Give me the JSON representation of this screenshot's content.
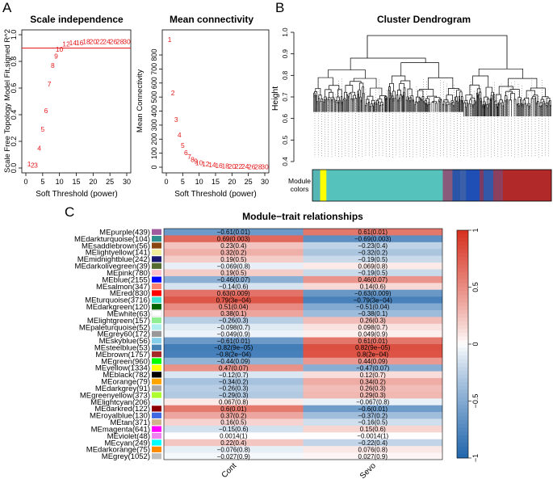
{
  "panel_labels": {
    "a": "A",
    "b": "B",
    "c": "C"
  },
  "colors": {
    "accent_red": "#e41a1c",
    "low": "#2166ac",
    "mid": "#ffffff",
    "high": "#d6301f"
  },
  "chart_data": [
    {
      "type": "scatter",
      "title": "Scale independence",
      "xlabel": "Soft Threshold (power)",
      "ylabel": "Scale Free Topology Model Fit,signed R^2",
      "xlim": [
        0,
        30
      ],
      "ylim": [
        0.0,
        1.0
      ],
      "xticks": [
        "0",
        "5",
        "10",
        "15",
        "20",
        "25",
        "30"
      ],
      "yticks": [
        "0.0",
        "0.2",
        "0.4",
        "0.6",
        "0.8",
        "1.0"
      ],
      "hline": 0.9,
      "points": [
        {
          "x": 1,
          "y": 0.03,
          "label": "1"
        },
        {
          "x": 2,
          "y": 0.02,
          "label": "2"
        },
        {
          "x": 3,
          "y": 0.02,
          "label": "3"
        },
        {
          "x": 4,
          "y": 0.15,
          "label": "4"
        },
        {
          "x": 5,
          "y": 0.29,
          "label": "5"
        },
        {
          "x": 6,
          "y": 0.43,
          "label": "6"
        },
        {
          "x": 7,
          "y": 0.63,
          "label": "7"
        },
        {
          "x": 8,
          "y": 0.77,
          "label": "8"
        },
        {
          "x": 9,
          "y": 0.84,
          "label": "9"
        },
        {
          "x": 10,
          "y": 0.89,
          "label": "10"
        },
        {
          "x": 12,
          "y": 0.93,
          "label": "12"
        },
        {
          "x": 14,
          "y": 0.94,
          "label": "14"
        },
        {
          "x": 16,
          "y": 0.94,
          "label": "16"
        },
        {
          "x": 18,
          "y": 0.95,
          "label": "18"
        },
        {
          "x": 20,
          "y": 0.95,
          "label": "20"
        },
        {
          "x": 22,
          "y": 0.95,
          "label": "22"
        },
        {
          "x": 24,
          "y": 0.95,
          "label": "24"
        },
        {
          "x": 26,
          "y": 0.95,
          "label": "26"
        },
        {
          "x": 28,
          "y": 0.95,
          "label": "28"
        },
        {
          "x": 30,
          "y": 0.95,
          "label": "30"
        }
      ]
    },
    {
      "type": "scatter",
      "title": "Mean connectivity",
      "xlabel": "Soft Threshold (power)",
      "ylabel": "Mean Connectivity",
      "xlim": [
        0,
        30
      ],
      "ylim": [
        0,
        950
      ],
      "xticks": [
        "0",
        "5",
        "10",
        "15",
        "20",
        "25",
        "30"
      ],
      "yticks": [
        "0",
        "100",
        "200",
        "300",
        "400",
        "500",
        "600",
        "700",
        "800"
      ],
      "points": [
        {
          "x": 1,
          "y": 910,
          "label": "1"
        },
        {
          "x": 2,
          "y": 530,
          "label": "2"
        },
        {
          "x": 3,
          "y": 340,
          "label": "3"
        },
        {
          "x": 4,
          "y": 230,
          "label": "4"
        },
        {
          "x": 5,
          "y": 155,
          "label": "5"
        },
        {
          "x": 6,
          "y": 105,
          "label": "6"
        },
        {
          "x": 7,
          "y": 75,
          "label": "7"
        },
        {
          "x": 8,
          "y": 55,
          "label": "8"
        },
        {
          "x": 9,
          "y": 42,
          "label": "9"
        },
        {
          "x": 10,
          "y": 32,
          "label": "10"
        },
        {
          "x": 12,
          "y": 22,
          "label": "12"
        },
        {
          "x": 14,
          "y": 16,
          "label": "14"
        },
        {
          "x": 16,
          "y": 12,
          "label": "16"
        },
        {
          "x": 18,
          "y": 9,
          "label": "18"
        },
        {
          "x": 20,
          "y": 7,
          "label": "20"
        },
        {
          "x": 22,
          "y": 6,
          "label": "22"
        },
        {
          "x": 24,
          "y": 5,
          "label": "24"
        },
        {
          "x": 26,
          "y": 4,
          "label": "26"
        },
        {
          "x": 28,
          "y": 3,
          "label": "28"
        },
        {
          "x": 30,
          "y": 3,
          "label": "30"
        }
      ]
    },
    {
      "type": "dendrogram",
      "title": "Cluster Dendrogram",
      "ylabel": "Height",
      "ylim": [
        0.4,
        1.0
      ],
      "yticks": [
        "0.4",
        "0.5",
        "0.6",
        "0.7",
        "0.8",
        "0.9",
        "1.0"
      ],
      "colorbar_label": "Module colors",
      "colorbar_segments": [
        {
          "color": "#56b6b6",
          "weight": 2
        },
        {
          "color": "#ffff00",
          "weight": 1.6
        },
        {
          "color": "#56c2bc",
          "weight": 30
        },
        {
          "color": "#8a5a7a",
          "weight": 2.5
        },
        {
          "color": "#2a55a8",
          "weight": 2
        },
        {
          "color": "#3b5fa8",
          "weight": 1.5
        },
        {
          "color": "#1f4fb5",
          "weight": 3.5
        },
        {
          "color": "#7b3b62",
          "weight": 1
        },
        {
          "color": "#3358a8",
          "weight": 2.5
        },
        {
          "color": "#8b4060",
          "weight": 2.5
        },
        {
          "color": "#b2292a",
          "weight": 12.5
        }
      ]
    },
    {
      "type": "heatmap",
      "title": "Module−trait relationships",
      "columns": [
        "Cont",
        "Sevo"
      ],
      "zlim": [
        -1,
        1
      ],
      "legend_ticks": [
        "1",
        "0.5",
        "0",
        "−0.5",
        "−1"
      ],
      "rows": [
        {
          "label": "MEpurple(439)",
          "color": "#a05b9f",
          "values": [
            -0.61,
            0.61
          ],
          "text": [
            "−0.61(0.01)",
            "0.61(0.01)"
          ]
        },
        {
          "label": "MEdarkturquoise(104)",
          "color": "#2f8e8e",
          "values": [
            0.69,
            -0.69
          ],
          "text": [
            "0.69(0.003)",
            "−0.69(0.003)"
          ]
        },
        {
          "label": "MEsaddlebrown(56)",
          "color": "#8b4513",
          "values": [
            0.23,
            -0.23
          ],
          "text": [
            "0.23(0.4)",
            "−0.23(0.4)"
          ]
        },
        {
          "label": "MElightyellow(141)",
          "color": "#f0ee9a",
          "values": [
            0.32,
            -0.32
          ],
          "text": [
            "0.32(0.2)",
            "−0.32(0.2)"
          ]
        },
        {
          "label": "MEmidnightblue(242)",
          "color": "#191970",
          "values": [
            0.19,
            -0.19
          ],
          "text": [
            "0.19(0.5)",
            "−0.19(0.5)"
          ]
        },
        {
          "label": "MEdarkolivegreen(39)",
          "color": "#556b2f",
          "values": [
            -0.069,
            0.069
          ],
          "text": [
            "−0.069(0.8)",
            "0.069(0.8)"
          ]
        },
        {
          "label": "MEpink(780)",
          "color": "#ffc0cb",
          "values": [
            0.19,
            -0.19
          ],
          "text": [
            "0.19(0.5)",
            "−0.19(0.5)"
          ]
        },
        {
          "label": "MEblue(2155)",
          "color": "#0000ff",
          "values": [
            -0.46,
            0.46
          ],
          "text": [
            "−0.46(0.07)",
            "0.46(0.07)"
          ]
        },
        {
          "label": "MEsalmon(347)",
          "color": "#fa8072",
          "values": [
            -0.14,
            0.14
          ],
          "text": [
            "−0.14(0.6)",
            "0.14(0.6)"
          ]
        },
        {
          "label": "MEred(830)",
          "color": "#ff0000",
          "values": [
            0.63,
            -0.63
          ],
          "text": [
            "0.63(0.009)",
            "−0.63(0.009)"
          ]
        },
        {
          "label": "MEturquoise(3716)",
          "color": "#40e0d0",
          "values": [
            0.79,
            -0.79
          ],
          "text": [
            "0.79(3e−04)",
            "−0.79(3e−04)"
          ]
        },
        {
          "label": "MEdarkgreen(120)",
          "color": "#006400",
          "values": [
            0.51,
            -0.51
          ],
          "text": [
            "0.51(0.04)",
            "−0.51(0.04)"
          ]
        },
        {
          "label": "MEwhite(63)",
          "color": "#ffffff",
          "values": [
            0.38,
            -0.38
          ],
          "text": [
            "0.38(0.1)",
            "−0.38(0.1)"
          ]
        },
        {
          "label": "MElightgreen(157)",
          "color": "#90ee90",
          "values": [
            -0.26,
            0.26
          ],
          "text": [
            "−0.26(0.3)",
            "0.26(0.3)"
          ]
        },
        {
          "label": "MEpaleturquoise(52)",
          "color": "#afeeee",
          "values": [
            -0.098,
            0.098
          ],
          "text": [
            "−0.098(0.7)",
            "0.098(0.7)"
          ]
        },
        {
          "label": "MEgrey60(172)",
          "color": "#999999",
          "values": [
            -0.049,
            0.049
          ],
          "text": [
            "−0.049(0.9)",
            "0.049(0.9)"
          ]
        },
        {
          "label": "MEskyblue(56)",
          "color": "#87ceeb",
          "values": [
            -0.61,
            0.61
          ],
          "text": [
            "−0.61(0.01)",
            "0.61(0.01)"
          ]
        },
        {
          "label": "MEsteelblue(53)",
          "color": "#4682b4",
          "values": [
            -0.82,
            0.82
          ],
          "text": [
            "−0.82(9e−05)",
            "0.82(9e−05)"
          ]
        },
        {
          "label": "MEbrown(1757)",
          "color": "#a52a2a",
          "values": [
            -0.8,
            0.8
          ],
          "text": [
            "−0.8(2e−04)",
            "0.8(2e−04)"
          ]
        },
        {
          "label": "MEgreen(960)",
          "color": "#00ff00",
          "values": [
            -0.44,
            0.44
          ],
          "text": [
            "−0.44(0.09)",
            "0.44(0.09)"
          ]
        },
        {
          "label": "MEyellow(1334)",
          "color": "#ffff00",
          "values": [
            0.47,
            -0.47
          ],
          "text": [
            "0.47(0.07)",
            "−0.47(0.07)"
          ]
        },
        {
          "label": "MEblack(782)",
          "color": "#000000",
          "values": [
            -0.12,
            0.12
          ],
          "text": [
            "−0.12(0.7)",
            "0.12(0.7)"
          ]
        },
        {
          "label": "MEorange(79)",
          "color": "#ffa500",
          "values": [
            -0.34,
            0.34
          ],
          "text": [
            "−0.34(0.2)",
            "0.34(0.2)"
          ]
        },
        {
          "label": "MEdarkgrey(91)",
          "color": "#a9a9a9",
          "values": [
            -0.26,
            0.26
          ],
          "text": [
            "−0.26(0.3)",
            "0.26(0.3)"
          ]
        },
        {
          "label": "MEgreenyellow(373)",
          "color": "#adff2f",
          "values": [
            -0.29,
            0.29
          ],
          "text": [
            "−0.29(0.3)",
            "0.29(0.3)"
          ]
        },
        {
          "label": "MElightcyan(206)",
          "color": "#e0ffff",
          "values": [
            0.067,
            -0.067
          ],
          "text": [
            "0.067(0.8)",
            "−0.067(0.8)"
          ]
        },
        {
          "label": "MEdarkred(122)",
          "color": "#8b0000",
          "values": [
            0.6,
            -0.6
          ],
          "text": [
            "0.6(0.01)",
            "−0.6(0.01)"
          ]
        },
        {
          "label": "MEroyalblue(130)",
          "color": "#4169e1",
          "values": [
            0.37,
            -0.37
          ],
          "text": [
            "0.37(0.2)",
            "−0.37(0.2)"
          ]
        },
        {
          "label": "MEtan(371)",
          "color": "#d2b48c",
          "values": [
            0.16,
            -0.16
          ],
          "text": [
            "0.16(0.5)",
            "−0.16(0.5)"
          ]
        },
        {
          "label": "MEmagenta(641)",
          "color": "#ff00ff",
          "values": [
            -0.15,
            0.15
          ],
          "text": [
            "−0.15(0.6)",
            "0.15(0.6)"
          ]
        },
        {
          "label": "MEviolet(48)",
          "color": "#ee82ee",
          "values": [
            0.0014,
            -0.0014
          ],
          "text": [
            "0.0014(1)",
            "−0.0014(1)"
          ]
        },
        {
          "label": "MEcyan(249)",
          "color": "#00ffff",
          "values": [
            0.22,
            -0.22
          ],
          "text": [
            "0.22(0.4)",
            "−0.22(0.4)"
          ]
        },
        {
          "label": "MEdarkorange(75)",
          "color": "#ff8c00",
          "values": [
            -0.076,
            0.076
          ],
          "text": [
            "−0.076(0.8)",
            "0.076(0.8)"
          ]
        },
        {
          "label": "MEgrey(1052)",
          "color": "#bebebe",
          "values": [
            -0.027,
            0.027
          ],
          "text": [
            "−0.027(0.9)",
            "0.027(0.9)"
          ]
        }
      ]
    }
  ]
}
